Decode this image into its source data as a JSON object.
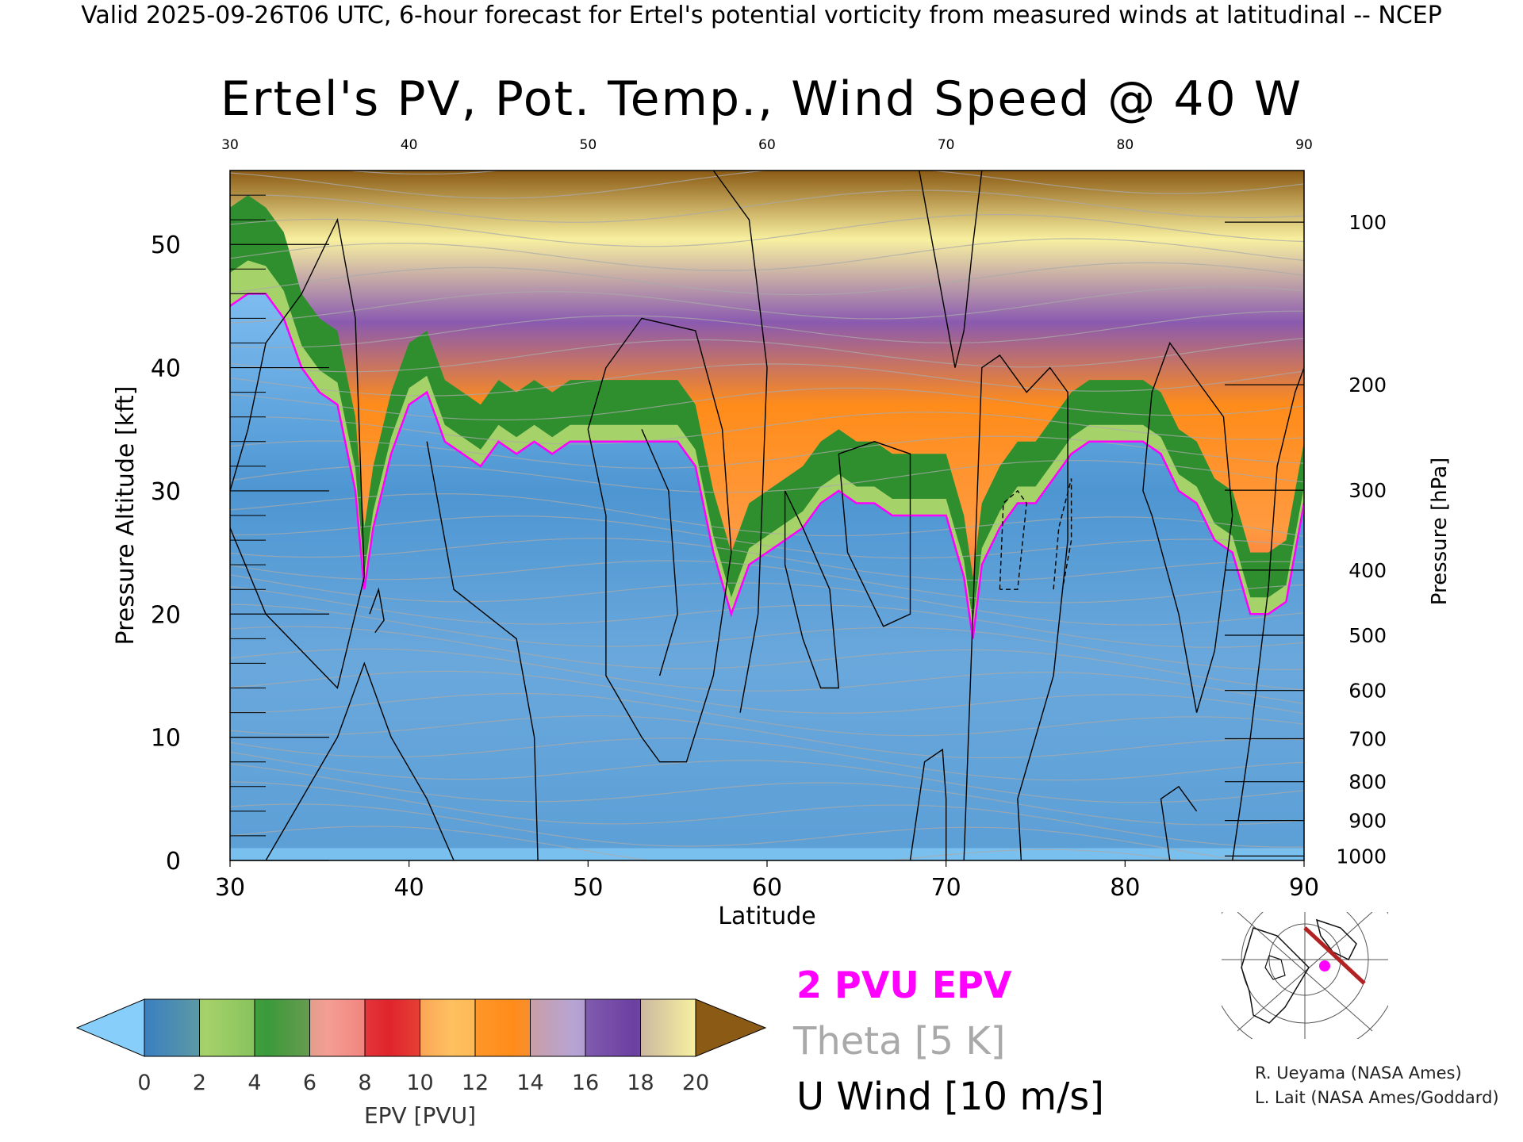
{
  "header": {
    "caption": "Valid 2025-09-26T06 UTC, 6-hour forecast for Ertel's potential vorticity from measured winds at latitudinal -- NCEP",
    "title": "Ertel's PV, Pot. Temp., Wind Speed @ 40 W"
  },
  "chart_data": {
    "type": "heatmap",
    "title": "Ertel's PV, Pot. Temp., Wind Speed @ 40 W",
    "xlabel": "Latitude",
    "ylabel": "Pressure Altitude [kft]",
    "y2label": "Pressure [hPa]",
    "xlim": [
      30,
      90
    ],
    "ylim": [
      0,
      56
    ],
    "x_ticks": [
      30,
      40,
      50,
      60,
      70,
      80,
      90
    ],
    "x_tick_labels": [
      "30",
      "40",
      "50",
      "60",
      "70",
      "80",
      "90"
    ],
    "y_ticks": [
      0,
      10,
      20,
      30,
      40,
      50
    ],
    "y_tick_labels": [
      "0",
      "10",
      "20",
      "30",
      "40",
      "50"
    ],
    "pressure_ticks": [
      1000,
      900,
      800,
      700,
      600,
      500,
      400,
      300,
      200,
      100
    ],
    "pressure_tick_labels": [
      "1000",
      "900",
      "800",
      "700",
      "600",
      "500",
      "400",
      "300",
      "200",
      "100"
    ],
    "pvu2_altitude": {
      "lat": [
        30,
        31,
        32,
        33,
        34,
        35,
        36,
        37,
        37.5,
        38,
        39,
        40,
        41,
        42,
        43,
        44,
        45,
        46,
        47,
        48,
        49,
        50,
        51,
        52,
        53,
        54,
        55,
        56,
        57,
        58,
        59,
        60,
        61,
        62,
        63,
        64,
        65,
        66,
        67,
        68,
        69,
        70,
        71,
        71.5,
        72,
        73,
        74,
        75,
        76,
        77,
        78,
        79,
        80,
        81,
        82,
        83,
        84,
        85,
        86,
        87,
        88,
        89,
        90
      ],
      "kft": [
        45,
        46,
        46,
        44,
        40,
        38,
        37,
        30,
        22,
        27,
        33,
        37,
        38,
        34,
        33,
        32,
        34,
        33,
        34,
        33,
        34,
        34,
        34,
        34,
        34,
        34,
        34,
        32,
        25,
        20,
        24,
        25,
        26,
        27,
        29,
        30,
        29,
        29,
        28,
        28,
        28,
        28,
        23,
        18,
        24,
        27,
        29,
        29,
        31,
        33,
        34,
        34,
        34,
        34,
        33,
        30,
        29,
        26,
        25,
        20,
        20,
        21,
        29
      ]
    },
    "tropopause_band_depth_kft": [
      6,
      6,
      5,
      5,
      4,
      4,
      4,
      4,
      3,
      3,
      3,
      3,
      3,
      3,
      3,
      3,
      3,
      3,
      3,
      3,
      3,
      3,
      3,
      3,
      3,
      3,
      3,
      3,
      3,
      3,
      3,
      3,
      3,
      3,
      3,
      3,
      3,
      3,
      3,
      3,
      3,
      3,
      3,
      3,
      3,
      3,
      3,
      3,
      3,
      3,
      3,
      3,
      3,
      3,
      3,
      3,
      3,
      3,
      3,
      3,
      3,
      3,
      3
    ],
    "colorbar": {
      "label": "EPV [PVU]",
      "ticks": [
        0,
        2,
        4,
        6,
        8,
        10,
        12,
        14,
        16,
        18,
        20
      ],
      "tick_labels": [
        "0",
        "2",
        "4",
        "6",
        "8",
        "10",
        "12",
        "14",
        "16",
        "18",
        "20"
      ],
      "colors": [
        "#3a7fc0",
        "#a6d26a",
        "#3a9a3a",
        "#f59e94",
        "#e0242c",
        "#ffc060",
        "#ff8c1a",
        "#b7a4d4",
        "#6b3fa0",
        "#f8f0a0"
      ],
      "under_color": "#87cefa",
      "over_color": "#8b5a14"
    },
    "legend": [
      "2 PVU EPV",
      "Theta [5 K]",
      "U Wind [10 m/s]"
    ],
    "colors": {
      "pvu_line": "#ff00ff",
      "theta": "#a9a9a9",
      "wind": "#000000"
    }
  },
  "credits": {
    "line1": "R. Ueyama (NASA Ames)",
    "line2": "L. Lait (NASA Ames/Goddard)"
  }
}
